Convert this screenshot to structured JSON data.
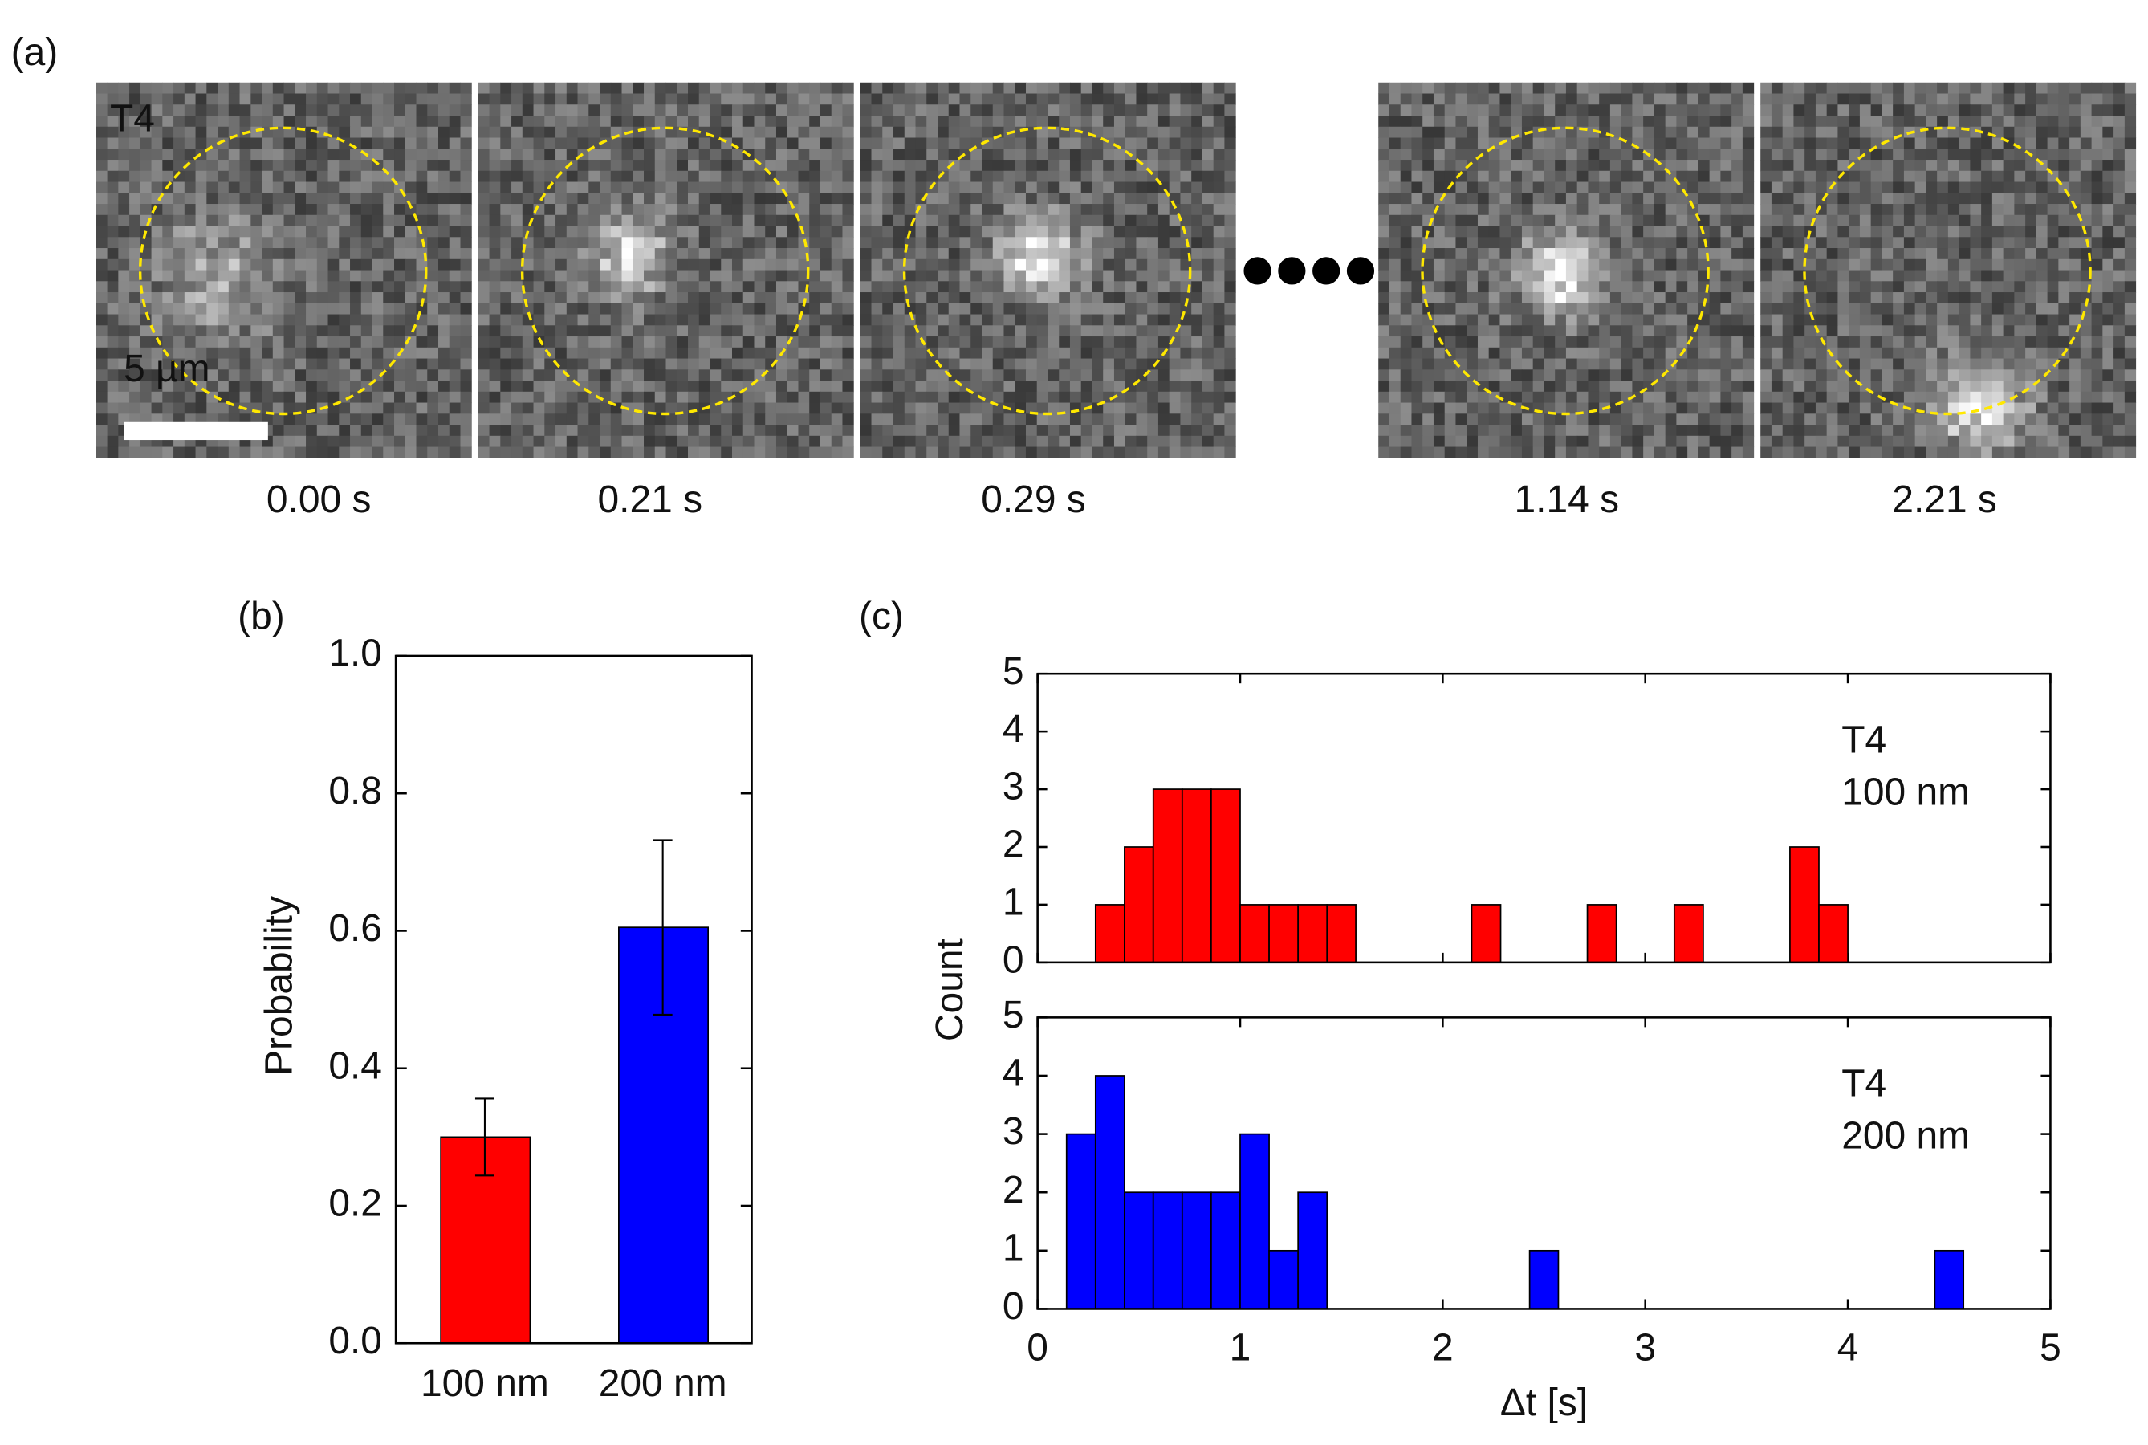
{
  "image_panel": {
    "label": "(a)",
    "strain": "T4",
    "scale": "5 µm",
    "times": [
      "0.00 s",
      "0.21 s",
      "0.29 s",
      "1.14 s",
      "2.21 s"
    ]
  },
  "chart_data": [
    {
      "type": "bar",
      "panel": "(b)",
      "ylabel": "Probability",
      "categories": [
        "100 nm",
        "200 nm"
      ],
      "values": [
        0.3,
        0.605
      ],
      "errors": [
        0.056,
        0.127
      ],
      "colors": [
        "#ff0000",
        "#0000ff"
      ],
      "ylim": [
        0,
        1
      ],
      "yticks": [
        {
          "value": 0,
          "label": "0.0"
        },
        0.2,
        0.4,
        0.6,
        0.8,
        {
          "value": 1,
          "label": "1.0"
        }
      ]
    },
    {
      "type": "histogram",
      "panel": "(c)",
      "ylabel": "Count",
      "color": "#ff0000",
      "annotation": [
        "T4",
        "100 nm"
      ],
      "bins": [
        0,
        0.143,
        0.286,
        0.429,
        0.571,
        0.714,
        0.857,
        1,
        1.143,
        1.286,
        1.429,
        1.571,
        1.714,
        1.857,
        2,
        2.143,
        2.286,
        2.429,
        2.571,
        2.714,
        2.857,
        3,
        3.143,
        3.286,
        3.429,
        3.571,
        3.714,
        3.857,
        4,
        4.143,
        4.286,
        4.429,
        4.571,
        4.714,
        4.857,
        5
      ],
      "values": [
        0,
        0,
        1,
        2,
        3,
        3,
        3,
        1,
        1,
        1,
        1,
        0,
        0,
        0,
        0,
        1,
        0,
        0,
        0,
        1,
        0,
        0,
        1,
        0,
        0,
        0,
        2,
        1,
        0,
        0,
        0,
        0,
        0,
        0,
        0
      ],
      "xlim": [
        0,
        5
      ],
      "xticks": [
        0,
        1,
        2,
        3,
        4,
        5
      ],
      "xtick_labels": false,
      "ylim": [
        0,
        5
      ],
      "yticks": [
        0,
        1,
        2,
        3,
        4,
        5
      ]
    },
    {
      "type": "histogram",
      "xlabel": "Δt [s]",
      "color": "#0000ff",
      "annotation": [
        "T4",
        "200 nm"
      ],
      "bins": [
        0,
        0.143,
        0.286,
        0.429,
        0.571,
        0.714,
        0.857,
        1,
        1.143,
        1.286,
        1.429,
        1.571,
        1.714,
        1.857,
        2,
        2.143,
        2.286,
        2.429,
        2.571,
        2.714,
        2.857,
        3,
        3.143,
        3.286,
        3.429,
        3.571,
        3.714,
        3.857,
        4,
        4.143,
        4.286,
        4.429,
        4.571,
        4.714,
        4.857,
        5
      ],
      "values": [
        0,
        3,
        4,
        2,
        2,
        2,
        2,
        3,
        1,
        2,
        0,
        0,
        0,
        0,
        0,
        0,
        0,
        1,
        0,
        0,
        0,
        0,
        0,
        0,
        0,
        0,
        0,
        0,
        0,
        0,
        0,
        1,
        0,
        0,
        0
      ],
      "xlim": [
        0,
        5
      ],
      "xticks": [
        0,
        1,
        2,
        3,
        4,
        5
      ],
      "xtick_labels": true,
      "ylim": [
        0,
        5
      ],
      "yticks": [
        0,
        1,
        2,
        3,
        4,
        5
      ]
    }
  ]
}
